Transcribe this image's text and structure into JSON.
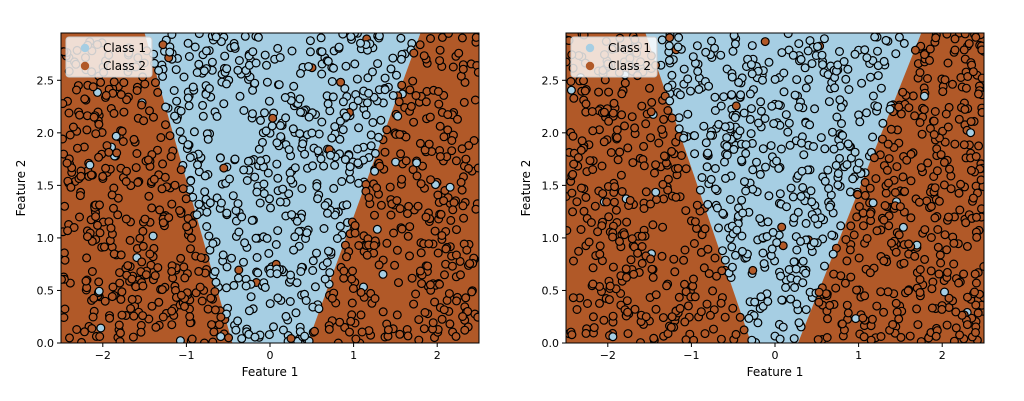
{
  "chart_data": [
    {
      "type": "scatter",
      "subtype": "decision-boundary",
      "xlabel": "Feature 1",
      "ylabel": "Feature 2",
      "xlim": [
        -2.5,
        2.5
      ],
      "ylim": [
        0.0,
        2.95
      ],
      "xticks": [
        -2,
        -1,
        0,
        1,
        2
      ],
      "xtick_labels": [
        "−2",
        "−1",
        "0",
        "1",
        "2"
      ],
      "yticks": [
        0.0,
        0.5,
        1.0,
        1.5,
        2.0,
        2.5
      ],
      "ytick_labels": [
        "0.0",
        "0.5",
        "1.0",
        "1.5",
        "2.0",
        "2.5"
      ],
      "grid": false,
      "legend": {
        "position": "top-left",
        "entries": [
          "Class 1",
          "Class 2"
        ]
      },
      "boundary": {
        "class1_region": "v-shape between two lines",
        "left_line": [
          [
            -0.45,
            0.0
          ],
          [
            -1.5,
            2.95
          ]
        ],
        "right_line": [
          [
            0.45,
            0.0
          ],
          [
            1.8,
            2.95
          ]
        ]
      },
      "series": [
        {
          "name": "Class 1",
          "color": "#a6cee3",
          "n_points": 520,
          "x_range": [
            -2.5,
            2.5
          ],
          "y_range": [
            0.0,
            2.95
          ]
        },
        {
          "name": "Class 2",
          "color": "#b15928",
          "n_points": 700,
          "x_range": [
            -2.5,
            2.5
          ],
          "y_range": [
            0.0,
            2.95
          ]
        }
      ]
    },
    {
      "type": "scatter",
      "subtype": "decision-boundary",
      "xlabel": "Feature 1",
      "ylabel": "Feature 2",
      "xlim": [
        -2.5,
        2.5
      ],
      "ylim": [
        0.0,
        2.95
      ],
      "xticks": [
        -2,
        -1,
        0,
        1,
        2
      ],
      "xtick_labels": [
        "−2",
        "−1",
        "0",
        "1",
        "2"
      ],
      "yticks": [
        0.0,
        0.5,
        1.0,
        1.5,
        2.0,
        2.5
      ],
      "ytick_labels": [
        "0.0",
        "0.5",
        "1.0",
        "1.5",
        "2.0",
        "2.5"
      ],
      "grid": false,
      "legend": {
        "position": "top-left",
        "entries": [
          "Class 1",
          "Class 2"
        ]
      },
      "boundary": {
        "class1_region": "v-shape between two lines",
        "left_line": [
          [
            -0.35,
            0.15
          ],
          [
            -1.55,
            2.95
          ]
        ],
        "right_line": [
          [
            0.35,
            0.15
          ],
          [
            1.75,
            2.95
          ]
        ]
      },
      "series": [
        {
          "name": "Class 1",
          "color": "#a6cee3",
          "n_points": 520,
          "x_range": [
            -2.5,
            2.5
          ],
          "y_range": [
            0.0,
            2.95
          ]
        },
        {
          "name": "Class 2",
          "color": "#b15928",
          "n_points": 700,
          "x_range": [
            -2.5,
            2.5
          ],
          "y_range": [
            0.0,
            2.95
          ]
        }
      ]
    }
  ]
}
